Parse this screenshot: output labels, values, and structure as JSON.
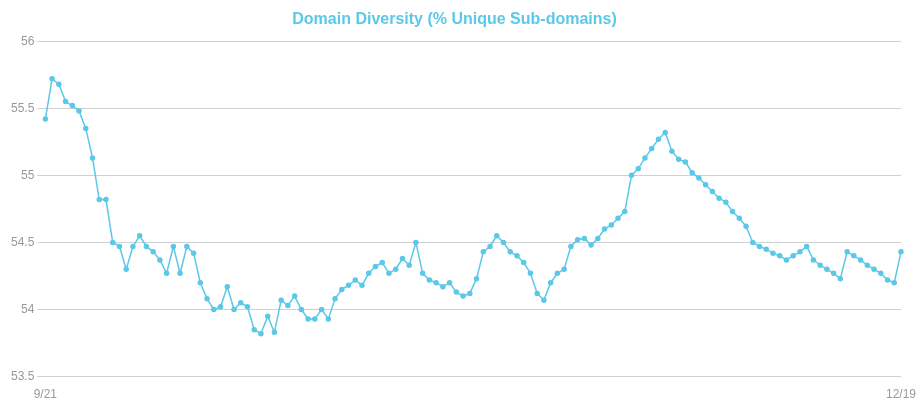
{
  "chart_data": {
    "type": "line",
    "title": "Domain Diversity (% Unique Sub-domains)",
    "color": "#5bc8e8",
    "marker": "circle",
    "grid": true,
    "categories": [
      "9/21",
      null,
      null,
      null,
      null,
      null,
      null,
      null,
      null,
      null,
      null,
      null,
      null,
      null,
      null,
      null,
      null,
      null,
      null,
      null,
      null,
      null,
      null,
      null,
      null,
      null,
      null,
      null,
      null,
      null,
      null,
      null,
      null,
      null,
      null,
      null,
      null,
      null,
      null,
      null,
      null,
      null,
      null,
      null,
      null,
      null,
      null,
      null,
      null,
      null,
      null,
      null,
      null,
      null,
      null,
      null,
      null,
      null,
      null,
      null,
      null,
      null,
      null,
      null,
      null,
      null,
      null,
      null,
      null,
      null,
      null,
      null,
      null,
      null,
      null,
      null,
      null,
      null,
      null,
      null,
      null,
      null,
      null,
      null,
      null,
      null,
      null,
      null,
      null,
      null,
      null,
      null,
      null,
      null,
      null,
      null,
      null,
      null,
      null,
      null,
      null,
      null,
      null,
      null,
      null,
      null,
      null,
      null,
      null,
      null,
      null,
      null,
      null,
      null,
      null,
      null,
      null,
      null,
      null,
      null,
      null,
      null,
      null,
      null,
      null,
      null,
      null,
      "12/19"
    ],
    "values": [
      55.42,
      55.72,
      55.68,
      55.55,
      55.52,
      55.48,
      55.35,
      55.13,
      54.82,
      54.82,
      54.5,
      54.47,
      54.3,
      54.47,
      54.55,
      54.47,
      54.43,
      54.37,
      54.27,
      54.47,
      54.27,
      54.47,
      54.42,
      54.2,
      54.08,
      54.0,
      54.02,
      54.17,
      54.0,
      54.05,
      54.02,
      53.85,
      53.82,
      53.95,
      53.83,
      54.07,
      54.03,
      54.1,
      54.0,
      53.93,
      53.93,
      54.0,
      53.93,
      54.08,
      54.15,
      54.18,
      54.22,
      54.18,
      54.27,
      54.32,
      54.35,
      54.27,
      54.3,
      54.38,
      54.33,
      54.5,
      54.27,
      54.22,
      54.2,
      54.17,
      54.2,
      54.13,
      54.1,
      54.12,
      54.23,
      54.43,
      54.47,
      54.55,
      54.5,
      54.43,
      54.4,
      54.35,
      54.27,
      54.12,
      54.07,
      54.2,
      54.27,
      54.3,
      54.47,
      54.52,
      54.53,
      54.48,
      54.53,
      54.6,
      54.63,
      54.68,
      54.73,
      55.0,
      55.05,
      55.13,
      55.2,
      55.27,
      55.32,
      55.18,
      55.12,
      55.1,
      55.02,
      54.98,
      54.93,
      54.88,
      54.83,
      54.8,
      54.73,
      54.68,
      54.62,
      54.5,
      54.47,
      54.45,
      54.42,
      54.4,
      54.37,
      54.4,
      54.43,
      54.47,
      54.37,
      54.33,
      54.3,
      54.27,
      54.23,
      54.43,
      54.4,
      54.37,
      54.33,
      54.3,
      54.27,
      54.22,
      54.2,
      54.43
    ],
    "ylim": [
      53.5,
      56
    ],
    "yticks": [
      53.5,
      54,
      54.5,
      55,
      55.5,
      56
    ]
  }
}
